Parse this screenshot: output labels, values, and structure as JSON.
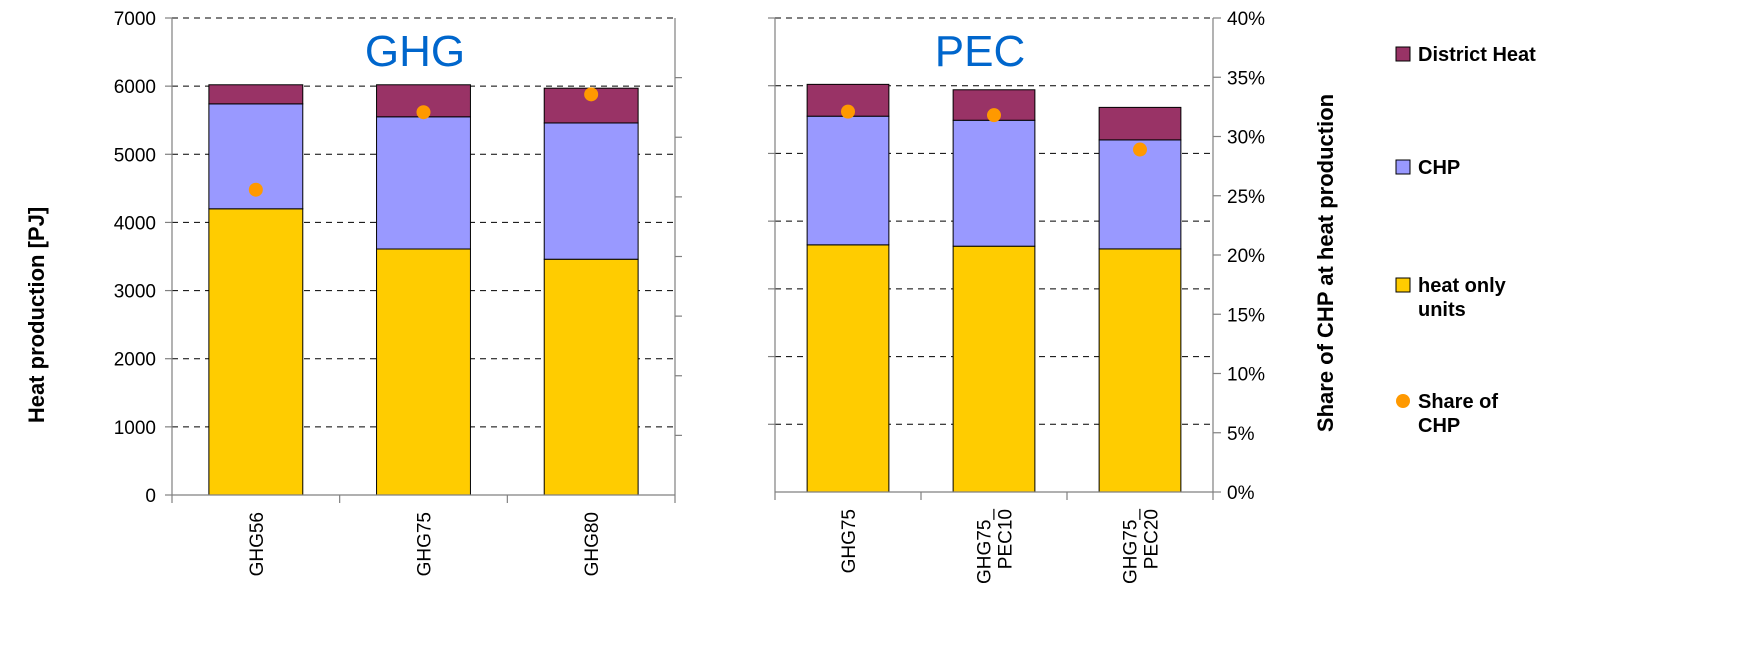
{
  "chart_data": {
    "type": "bar",
    "stacked": true,
    "grid": "horizontal dashed",
    "legend_position": "right",
    "ylabel_left": "Heat production [PJ]",
    "ylabel_right": "Share of CHP at heat production",
    "ylim_left": [
      0,
      7000
    ],
    "ylim_right": [
      0,
      40
    ],
    "yticks_left": [
      "0",
      "1000",
      "2000",
      "3000",
      "4000",
      "5000",
      "6000",
      "7000"
    ],
    "yticks_right": [
      "0%",
      "5%",
      "10%",
      "15%",
      "20%",
      "25%",
      "30%",
      "35%",
      "40%"
    ],
    "colors": {
      "heat_only_units": "#FFCC00",
      "chp": "#9999FF",
      "district_heat": "#993366",
      "share_of_chp": "#FF9900"
    },
    "legend": [
      {
        "key": "district_heat",
        "label_lines": [
          "District Heat"
        ]
      },
      {
        "key": "chp",
        "label_lines": [
          "CHP"
        ]
      },
      {
        "key": "heat_only_units",
        "label_lines": [
          "heat only",
          "units"
        ]
      },
      {
        "key": "share_of_chp",
        "label_lines": [
          "Share of",
          "CHP"
        ]
      }
    ],
    "panels": [
      {
        "title": "GHG",
        "categories": [
          [
            "GHG56"
          ],
          [
            "GHG75"
          ],
          [
            "GHG80"
          ]
        ],
        "series": [
          {
            "key": "heat_only_units",
            "name": "heat only units",
            "values": [
              4200,
              3610,
              3460
            ]
          },
          {
            "key": "chp",
            "name": "CHP",
            "values": [
              1540,
              1940,
              2000
            ]
          },
          {
            "key": "district_heat",
            "name": "District Heat",
            "values": [
              280,
              470,
              510
            ]
          }
        ],
        "share_of_chp_percent": [
          25.6,
          32.1,
          33.6
        ]
      },
      {
        "title": "PEC",
        "categories": [
          [
            "GHG75"
          ],
          [
            "GHG75_",
            "PEC10"
          ],
          [
            "GHG75_",
            "PEC20"
          ]
        ],
        "series": [
          {
            "key": "heat_only_units",
            "name": "heat only units",
            "values": [
              3650,
              3630,
              3590
            ]
          },
          {
            "key": "chp",
            "name": "CHP",
            "values": [
              1900,
              1860,
              1610
            ]
          },
          {
            "key": "district_heat",
            "name": "District Heat",
            "values": [
              470,
              450,
              480
            ]
          }
        ],
        "share_of_chp_percent": [
          32.1,
          31.8,
          28.9
        ]
      }
    ]
  }
}
